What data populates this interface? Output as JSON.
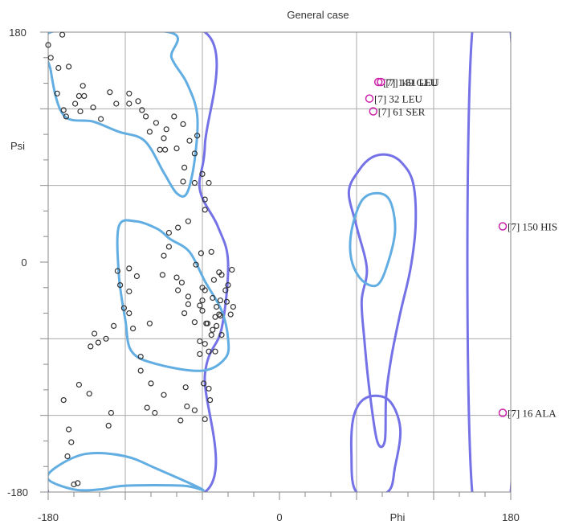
{
  "chart_data": {
    "type": "scatter",
    "title": "General case",
    "xlabel": "Phi",
    "ylabel": "Psi",
    "xlim": [
      -180,
      180
    ],
    "ylim": [
      -180,
      180
    ],
    "x_tick_labels": [
      "-180",
      "0",
      "180"
    ],
    "y_tick_labels": [
      "180",
      "0",
      "-180"
    ],
    "grid": true,
    "colors": {
      "favored_contour": "#62aee2",
      "allowed_contour": "#7472e6",
      "point": "#333333",
      "outlier": "#cc22aa",
      "grid": "#aaaaaa"
    },
    "points": [
      [
        -169,
        178
      ],
      [
        -180,
        170
      ],
      [
        -178,
        160
      ],
      [
        -172,
        152
      ],
      [
        -164,
        153
      ],
      [
        -173,
        132
      ],
      [
        -168,
        119
      ],
      [
        -166,
        114
      ],
      [
        -159,
        124
      ],
      [
        -153,
        138
      ],
      [
        -152,
        130
      ],
      [
        -156,
        130
      ],
      [
        -155,
        118
      ],
      [
        -145,
        121
      ],
      [
        -139,
        112
      ],
      [
        -132,
        133
      ],
      [
        -127,
        124
      ],
      [
        -117,
        132
      ],
      [
        -117,
        124
      ],
      [
        -110,
        126
      ],
      [
        -107,
        119
      ],
      [
        -104,
        114
      ],
      [
        -101,
        102
      ],
      [
        -96,
        109
      ],
      [
        -90,
        97
      ],
      [
        -93,
        88
      ],
      [
        -88,
        104
      ],
      [
        -89,
        88
      ],
      [
        -80,
        89
      ],
      [
        -82,
        114
      ],
      [
        -75,
        108
      ],
      [
        -70,
        95
      ],
      [
        -64,
        99
      ],
      [
        -66,
        85
      ],
      [
        -74,
        74
      ],
      [
        -60,
        69
      ],
      [
        -75,
        63
      ],
      [
        -66,
        62
      ],
      [
        -55,
        62
      ],
      [
        -58,
        49
      ],
      [
        -58,
        41
      ],
      [
        -71,
        32
      ],
      [
        -79,
        27
      ],
      [
        -86,
        23
      ],
      [
        -86,
        12
      ],
      [
        -90,
        5
      ],
      [
        -91,
        -10
      ],
      [
        -80,
        -12
      ],
      [
        -76,
        -16
      ],
      [
        -79,
        -22
      ],
      [
        -71,
        -27
      ],
      [
        -71,
        -33
      ],
      [
        -74,
        -40
      ],
      [
        -66,
        -47
      ],
      [
        -62,
        -62
      ],
      [
        -58,
        -64
      ],
      [
        -62,
        -72
      ],
      [
        -55,
        -70
      ],
      [
        -50,
        -70
      ],
      [
        -53,
        -57
      ],
      [
        -56,
        -48
      ],
      [
        -46,
        -42
      ],
      [
        -49,
        -35
      ],
      [
        -41,
        -31
      ],
      [
        -36,
        -35
      ],
      [
        -42,
        -22
      ],
      [
        -45,
        -10
      ],
      [
        -37,
        -6
      ],
      [
        -51,
        -14
      ],
      [
        -47,
        -8
      ],
      [
        -65,
        -2
      ],
      [
        -53,
        8
      ],
      [
        -61,
        7
      ],
      [
        -40,
        -18
      ],
      [
        -58,
        -22
      ],
      [
        -60,
        -30
      ],
      [
        -62,
        -34
      ],
      [
        -49,
        -50
      ],
      [
        -50,
        -43
      ],
      [
        -57,
        -48
      ],
      [
        -60,
        -20
      ],
      [
        -52,
        -28
      ],
      [
        -46,
        -30
      ],
      [
        -60,
        -38
      ],
      [
        -38,
        -41
      ],
      [
        -47,
        -41
      ],
      [
        -52,
        -53
      ],
      [
        -45,
        -57
      ],
      [
        -59,
        -95
      ],
      [
        -54,
        -108
      ],
      [
        -55,
        -99
      ],
      [
        -66,
        -116
      ],
      [
        -58,
        -123
      ],
      [
        -73,
        -98
      ],
      [
        -72,
        -113
      ],
      [
        -77,
        -124
      ],
      [
        -100,
        -95
      ],
      [
        -103,
        -114
      ],
      [
        -97,
        -118
      ],
      [
        -90,
        -104
      ],
      [
        -108,
        -85
      ],
      [
        -108,
        -74
      ],
      [
        -101,
        -48
      ],
      [
        -114,
        -52
      ],
      [
        -117,
        -40
      ],
      [
        -117,
        -23
      ],
      [
        -117,
        -5
      ],
      [
        -111,
        -11
      ],
      [
        -126,
        -7
      ],
      [
        -124,
        -18
      ],
      [
        -121,
        -36
      ],
      [
        -129,
        -50
      ],
      [
        -135,
        -60
      ],
      [
        -141,
        -63
      ],
      [
        -144,
        -56
      ],
      [
        -147,
        -66
      ],
      [
        -156,
        -96
      ],
      [
        -148,
        -103
      ],
      [
        -131,
        -118
      ],
      [
        -133,
        -128
      ],
      [
        -165,
        -152
      ],
      [
        -162,
        -141
      ],
      [
        -164,
        -131
      ],
      [
        -168,
        -108
      ],
      [
        -160,
        -174
      ],
      [
        -157,
        -173
      ]
    ],
    "outliers": [
      {
        "phi": 179,
        "psi": -118,
        "label": "[7]   16 ALA"
      },
      {
        "phi": 180,
        "psi": 28,
        "label": "[7]  150 HIS"
      },
      {
        "phi": 77,
        "psi": 141,
        "label": "[7]  149 GLU"
      },
      {
        "phi": 79,
        "psi": 141,
        "label": "[7]  151 LEU"
      },
      {
        "phi": 70,
        "psi": 128,
        "label": "[7]   32 LEU"
      },
      {
        "phi": 73,
        "psi": 118,
        "label": "[7]   61 SER"
      }
    ],
    "allowed_regions": [
      [
        [
          -180,
          180
        ],
        [
          -180,
          -180
        ],
        [
          -58,
          -180
        ],
        [
          -58,
          -88
        ],
        [
          -45,
          -52
        ],
        [
          -40,
          0
        ],
        [
          -48,
          28
        ],
        [
          -62,
          57
        ],
        [
          -58,
          92
        ],
        [
          -58,
          180
        ]
      ],
      [
        [
          180,
          180
        ],
        [
          180,
          -180
        ],
        [
          150,
          -180
        ],
        [
          150,
          180
        ]
      ],
      [
        [
          68,
          -5
        ],
        [
          60,
          28
        ],
        [
          54,
          55
        ],
        [
          62,
          72
        ],
        [
          72,
          82
        ],
        [
          84,
          84
        ],
        [
          95,
          78
        ],
        [
          104,
          62
        ],
        [
          106,
          30
        ],
        [
          102,
          -5
        ],
        [
          94,
          -40
        ],
        [
          87,
          -75
        ],
        [
          83,
          -105
        ],
        [
          82,
          -140
        ],
        [
          76,
          -140
        ],
        [
          70,
          -100
        ],
        [
          66,
          -60
        ],
        [
          64,
          -30
        ]
      ],
      [
        [
          60,
          -180
        ],
        [
          56,
          -150
        ],
        [
          58,
          -120
        ],
        [
          68,
          -106
        ],
        [
          85,
          -108
        ],
        [
          94,
          -130
        ],
        [
          90,
          -160
        ],
        [
          84,
          -180
        ]
      ]
    ],
    "favored_regions": [
      [
        [
          -150,
          -150
        ],
        [
          -173,
          -160
        ],
        [
          -180,
          -170
        ],
        [
          -160,
          -178
        ],
        [
          -140,
          -178
        ],
        [
          -120,
          -175
        ],
        [
          -75,
          -175
        ],
        [
          -60,
          -178
        ],
        [
          -95,
          -162
        ],
        [
          -120,
          -152
        ]
      ],
      [
        [
          -178,
          180
        ],
        [
          -178,
          150
        ],
        [
          -168,
          115
        ],
        [
          -145,
          110
        ],
        [
          -125,
          102
        ],
        [
          -105,
          95
        ],
        [
          -90,
          70
        ],
        [
          -80,
          54
        ],
        [
          -72,
          54
        ],
        [
          -66,
          80
        ],
        [
          -64,
          115
        ],
        [
          -72,
          140
        ],
        [
          -84,
          160
        ],
        [
          -86,
          180
        ]
      ],
      [
        [
          -125,
          28
        ],
        [
          -112,
          32
        ],
        [
          -95,
          26
        ],
        [
          -85,
          18
        ],
        [
          -70,
          8
        ],
        [
          -58,
          -15
        ],
        [
          -45,
          -38
        ],
        [
          -40,
          -60
        ],
        [
          -42,
          -75
        ],
        [
          -60,
          -85
        ],
        [
          -95,
          -80
        ],
        [
          -115,
          -70
        ],
        [
          -120,
          -45
        ],
        [
          -125,
          -10
        ]
      ],
      [
        [
          56,
          2
        ],
        [
          56,
          24
        ],
        [
          64,
          48
        ],
        [
          76,
          54
        ],
        [
          86,
          48
        ],
        [
          90,
          25
        ],
        [
          84,
          -2
        ],
        [
          76,
          -18
        ],
        [
          64,
          -14
        ]
      ]
    ]
  }
}
